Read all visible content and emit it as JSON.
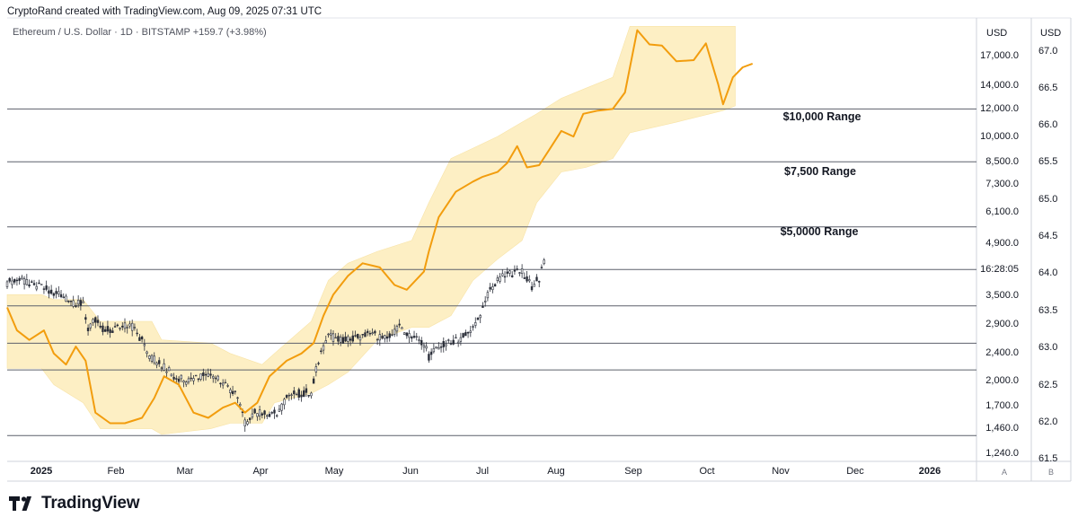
{
  "header": {
    "credit": "CryptoRand created with TradingView.com, Aug 09, 2025 07:31 UTC",
    "symbol_line": "Ethereum / U.S. Dollar · 1D · BITSTAMP",
    "change": "+159.7 (+3.98%)"
  },
  "axes": {
    "left_unit": "USD",
    "right_unit": "USD",
    "price_ticks": [
      "17,000.0",
      "14,000.0",
      "12,000.0",
      "10,000.0",
      "8,500.0",
      "7,300.0",
      "6,100.0",
      "4,900.0",
      "16:28:05",
      "3,500.0",
      "2,900.0",
      "2,400.0",
      "2,000.0",
      "1,700.0",
      "1,460.0",
      "1,240.0"
    ],
    "secondary_ticks": [
      "67.0",
      "66.5",
      "66.0",
      "65.5",
      "65.0",
      "64.5",
      "64.0",
      "63.5",
      "63.0",
      "62.5",
      "62.0",
      "61.5"
    ],
    "time_ticks": [
      "2025",
      "Feb",
      "Mar",
      "Apr",
      "May",
      "Jun",
      "Jul",
      "Aug",
      "Sep",
      "Oct",
      "Nov",
      "Dec",
      "2026"
    ],
    "scale_buttons": [
      "A",
      "B"
    ]
  },
  "annotations": {
    "range_10000": "$10,000 Range",
    "range_7500": "$7,500 Range",
    "range_5000": "$5,0000 Range"
  },
  "footer": {
    "brand": "TradingView"
  },
  "colors": {
    "line": "#f29d0e",
    "band_fill": "#fdefc4",
    "level_line": "#5d606b",
    "candle": "#2a2e39"
  },
  "chart_data": {
    "type": "line",
    "title": "Ethereum / U.S. Dollar · 1D · BITSTAMP",
    "scale": "log",
    "x_range": [
      "2025-01-01",
      "2026-01-31"
    ],
    "y_range": [
      1200,
      18000
    ],
    "series": [
      {
        "type": "candlestick",
        "points": [
          [
            "2025-01-01",
            3550
          ],
          [
            "2025-01-06",
            3650
          ],
          [
            "2025-01-10",
            3500
          ],
          [
            "2025-01-15",
            3450
          ],
          [
            "2025-01-20",
            3350
          ],
          [
            "2025-01-24",
            3250
          ],
          [
            "2025-01-28",
            3150
          ],
          [
            "2025-02-01",
            3100
          ],
          [
            "2025-02-03",
            2700
          ],
          [
            "2025-02-06",
            2800
          ],
          [
            "2025-02-10",
            2650
          ],
          [
            "2025-02-15",
            2700
          ],
          [
            "2025-02-20",
            2750
          ],
          [
            "2025-02-25",
            2500
          ],
          [
            "2025-02-28",
            2250
          ],
          [
            "2025-03-05",
            2150
          ],
          [
            "2025-03-10",
            2000
          ],
          [
            "2025-03-15",
            1950
          ],
          [
            "2025-03-20",
            2000
          ],
          [
            "2025-03-25",
            2050
          ],
          [
            "2025-03-30",
            1900
          ],
          [
            "2025-04-04",
            1800
          ],
          [
            "2025-04-08",
            1500
          ],
          [
            "2025-04-12",
            1600
          ],
          [
            "2025-04-18",
            1580
          ],
          [
            "2025-04-22",
            1600
          ],
          [
            "2025-04-25",
            1780
          ],
          [
            "2025-04-30",
            1800
          ],
          [
            "2025-05-05",
            1820
          ],
          [
            "2025-05-08",
            2200
          ],
          [
            "2025-05-12",
            2550
          ],
          [
            "2025-05-18",
            2500
          ],
          [
            "2025-05-25",
            2550
          ],
          [
            "2025-05-30",
            2600
          ],
          [
            "2025-06-05",
            2500
          ],
          [
            "2025-06-10",
            2700
          ],
          [
            "2025-06-15",
            2550
          ],
          [
            "2025-06-20",
            2450
          ],
          [
            "2025-06-22",
            2250
          ],
          [
            "2025-06-26",
            2400
          ],
          [
            "2025-07-01",
            2450
          ],
          [
            "2025-07-06",
            2550
          ],
          [
            "2025-07-10",
            2700
          ],
          [
            "2025-07-14",
            3000
          ],
          [
            "2025-07-17",
            3400
          ],
          [
            "2025-07-22",
            3700
          ],
          [
            "2025-07-26",
            3750
          ],
          [
            "2025-07-30",
            3800
          ],
          [
            "2025-08-03",
            3450
          ],
          [
            "2025-08-06",
            3650
          ],
          [
            "2025-08-09",
            4200
          ]
        ]
      },
      {
        "name": "",
        "type": "line",
        "points": [
          [
            "2025-01-01",
            3050
          ],
          [
            "2025-01-05",
            2650
          ],
          [
            "2025-01-10",
            2500
          ],
          [
            "2025-01-16",
            2650
          ],
          [
            "2025-01-20",
            2300
          ],
          [
            "2025-01-25",
            2150
          ],
          [
            "2025-01-29",
            2400
          ],
          [
            "2025-02-02",
            2200
          ],
          [
            "2025-02-06",
            1600
          ],
          [
            "2025-02-12",
            1500
          ],
          [
            "2025-02-18",
            1500
          ],
          [
            "2025-02-25",
            1550
          ],
          [
            "2025-03-02",
            1750
          ],
          [
            "2025-03-06",
            2000
          ],
          [
            "2025-03-12",
            1900
          ],
          [
            "2025-03-18",
            1600
          ],
          [
            "2025-03-24",
            1550
          ],
          [
            "2025-03-30",
            1650
          ],
          [
            "2025-04-04",
            1700
          ],
          [
            "2025-04-08",
            1600
          ],
          [
            "2025-04-13",
            1700
          ],
          [
            "2025-04-18",
            2000
          ],
          [
            "2025-04-25",
            2200
          ],
          [
            "2025-05-01",
            2300
          ],
          [
            "2025-05-06",
            2450
          ],
          [
            "2025-05-10",
            2900
          ],
          [
            "2025-05-14",
            3300
          ],
          [
            "2025-05-20",
            3700
          ],
          [
            "2025-05-26",
            4000
          ],
          [
            "2025-06-02",
            3900
          ],
          [
            "2025-06-08",
            3500
          ],
          [
            "2025-06-13",
            3400
          ],
          [
            "2025-06-20",
            3800
          ],
          [
            "2025-06-22",
            4300
          ],
          [
            "2025-06-26",
            5300
          ],
          [
            "2025-07-03",
            6200
          ],
          [
            "2025-07-10",
            6600
          ],
          [
            "2025-07-14",
            6800
          ],
          [
            "2025-07-20",
            7000
          ],
          [
            "2025-07-24",
            7400
          ],
          [
            "2025-07-28",
            8200
          ],
          [
            "2025-08-01",
            7200
          ],
          [
            "2025-08-06",
            7300
          ],
          [
            "2025-08-10",
            8000
          ],
          [
            "2025-08-15",
            9000
          ],
          [
            "2025-08-20",
            8700
          ],
          [
            "2025-08-24",
            10000
          ],
          [
            "2025-08-30",
            10200
          ],
          [
            "2025-09-05",
            10300
          ],
          [
            "2025-09-10",
            11400
          ],
          [
            "2025-09-15",
            16700
          ],
          [
            "2025-09-20",
            15300
          ],
          [
            "2025-09-25",
            15200
          ],
          [
            "2025-10-01",
            13800
          ],
          [
            "2025-10-08",
            13900
          ],
          [
            "2025-10-13",
            15400
          ],
          [
            "2025-10-18",
            12000
          ],
          [
            "2025-10-20",
            10600
          ],
          [
            "2025-10-24",
            12500
          ],
          [
            "2025-10-28",
            13300
          ],
          [
            "2025-11-01",
            13600
          ]
        ]
      },
      {
        "name": "",
        "type": "area",
        "points": [
          [
            "2025-01-01",
            3300,
            2100
          ],
          [
            "2025-01-15",
            3300,
            2100
          ],
          [
            "2025-01-20",
            3200,
            1900
          ],
          [
            "2025-02-01",
            3200,
            1700
          ],
          [
            "2025-02-08",
            2800,
            1450
          ],
          [
            "2025-03-01",
            2800,
            1450
          ],
          [
            "2025-03-05",
            2500,
            1400
          ],
          [
            "2025-03-25",
            2450,
            1450
          ],
          [
            "2025-04-02",
            2300,
            1500
          ],
          [
            "2025-04-15",
            2150,
            1500
          ],
          [
            "2025-04-20",
            2300,
            1700
          ],
          [
            "2025-05-05",
            2800,
            1800
          ],
          [
            "2025-05-12",
            3600,
            1900
          ],
          [
            "2025-05-20",
            4000,
            2050
          ],
          [
            "2025-06-01",
            4300,
            2500
          ],
          [
            "2025-06-15",
            4600,
            2700
          ],
          [
            "2025-06-22",
            5800,
            2700
          ],
          [
            "2025-07-01",
            7600,
            2900
          ],
          [
            "2025-07-10",
            8100,
            3600
          ],
          [
            "2025-07-20",
            8700,
            4100
          ],
          [
            "2025-07-30",
            9500,
            4600
          ],
          [
            "2025-08-05",
            10000,
            5800
          ],
          [
            "2025-08-15",
            11000,
            7000
          ],
          [
            "2025-08-25",
            11700,
            7200
          ],
          [
            "2025-09-05",
            12500,
            7600
          ],
          [
            "2025-09-12",
            17100,
            8900
          ],
          [
            "2025-10-01",
            17100,
            9500
          ],
          [
            "2025-10-20",
            17100,
            10200
          ],
          [
            "2025-10-25",
            17100,
            10500
          ]
        ]
      }
    ],
    "levels": [
      10300,
      7450,
      5000,
      3850,
      3080,
      2450,
      2080,
      1390
    ]
  }
}
